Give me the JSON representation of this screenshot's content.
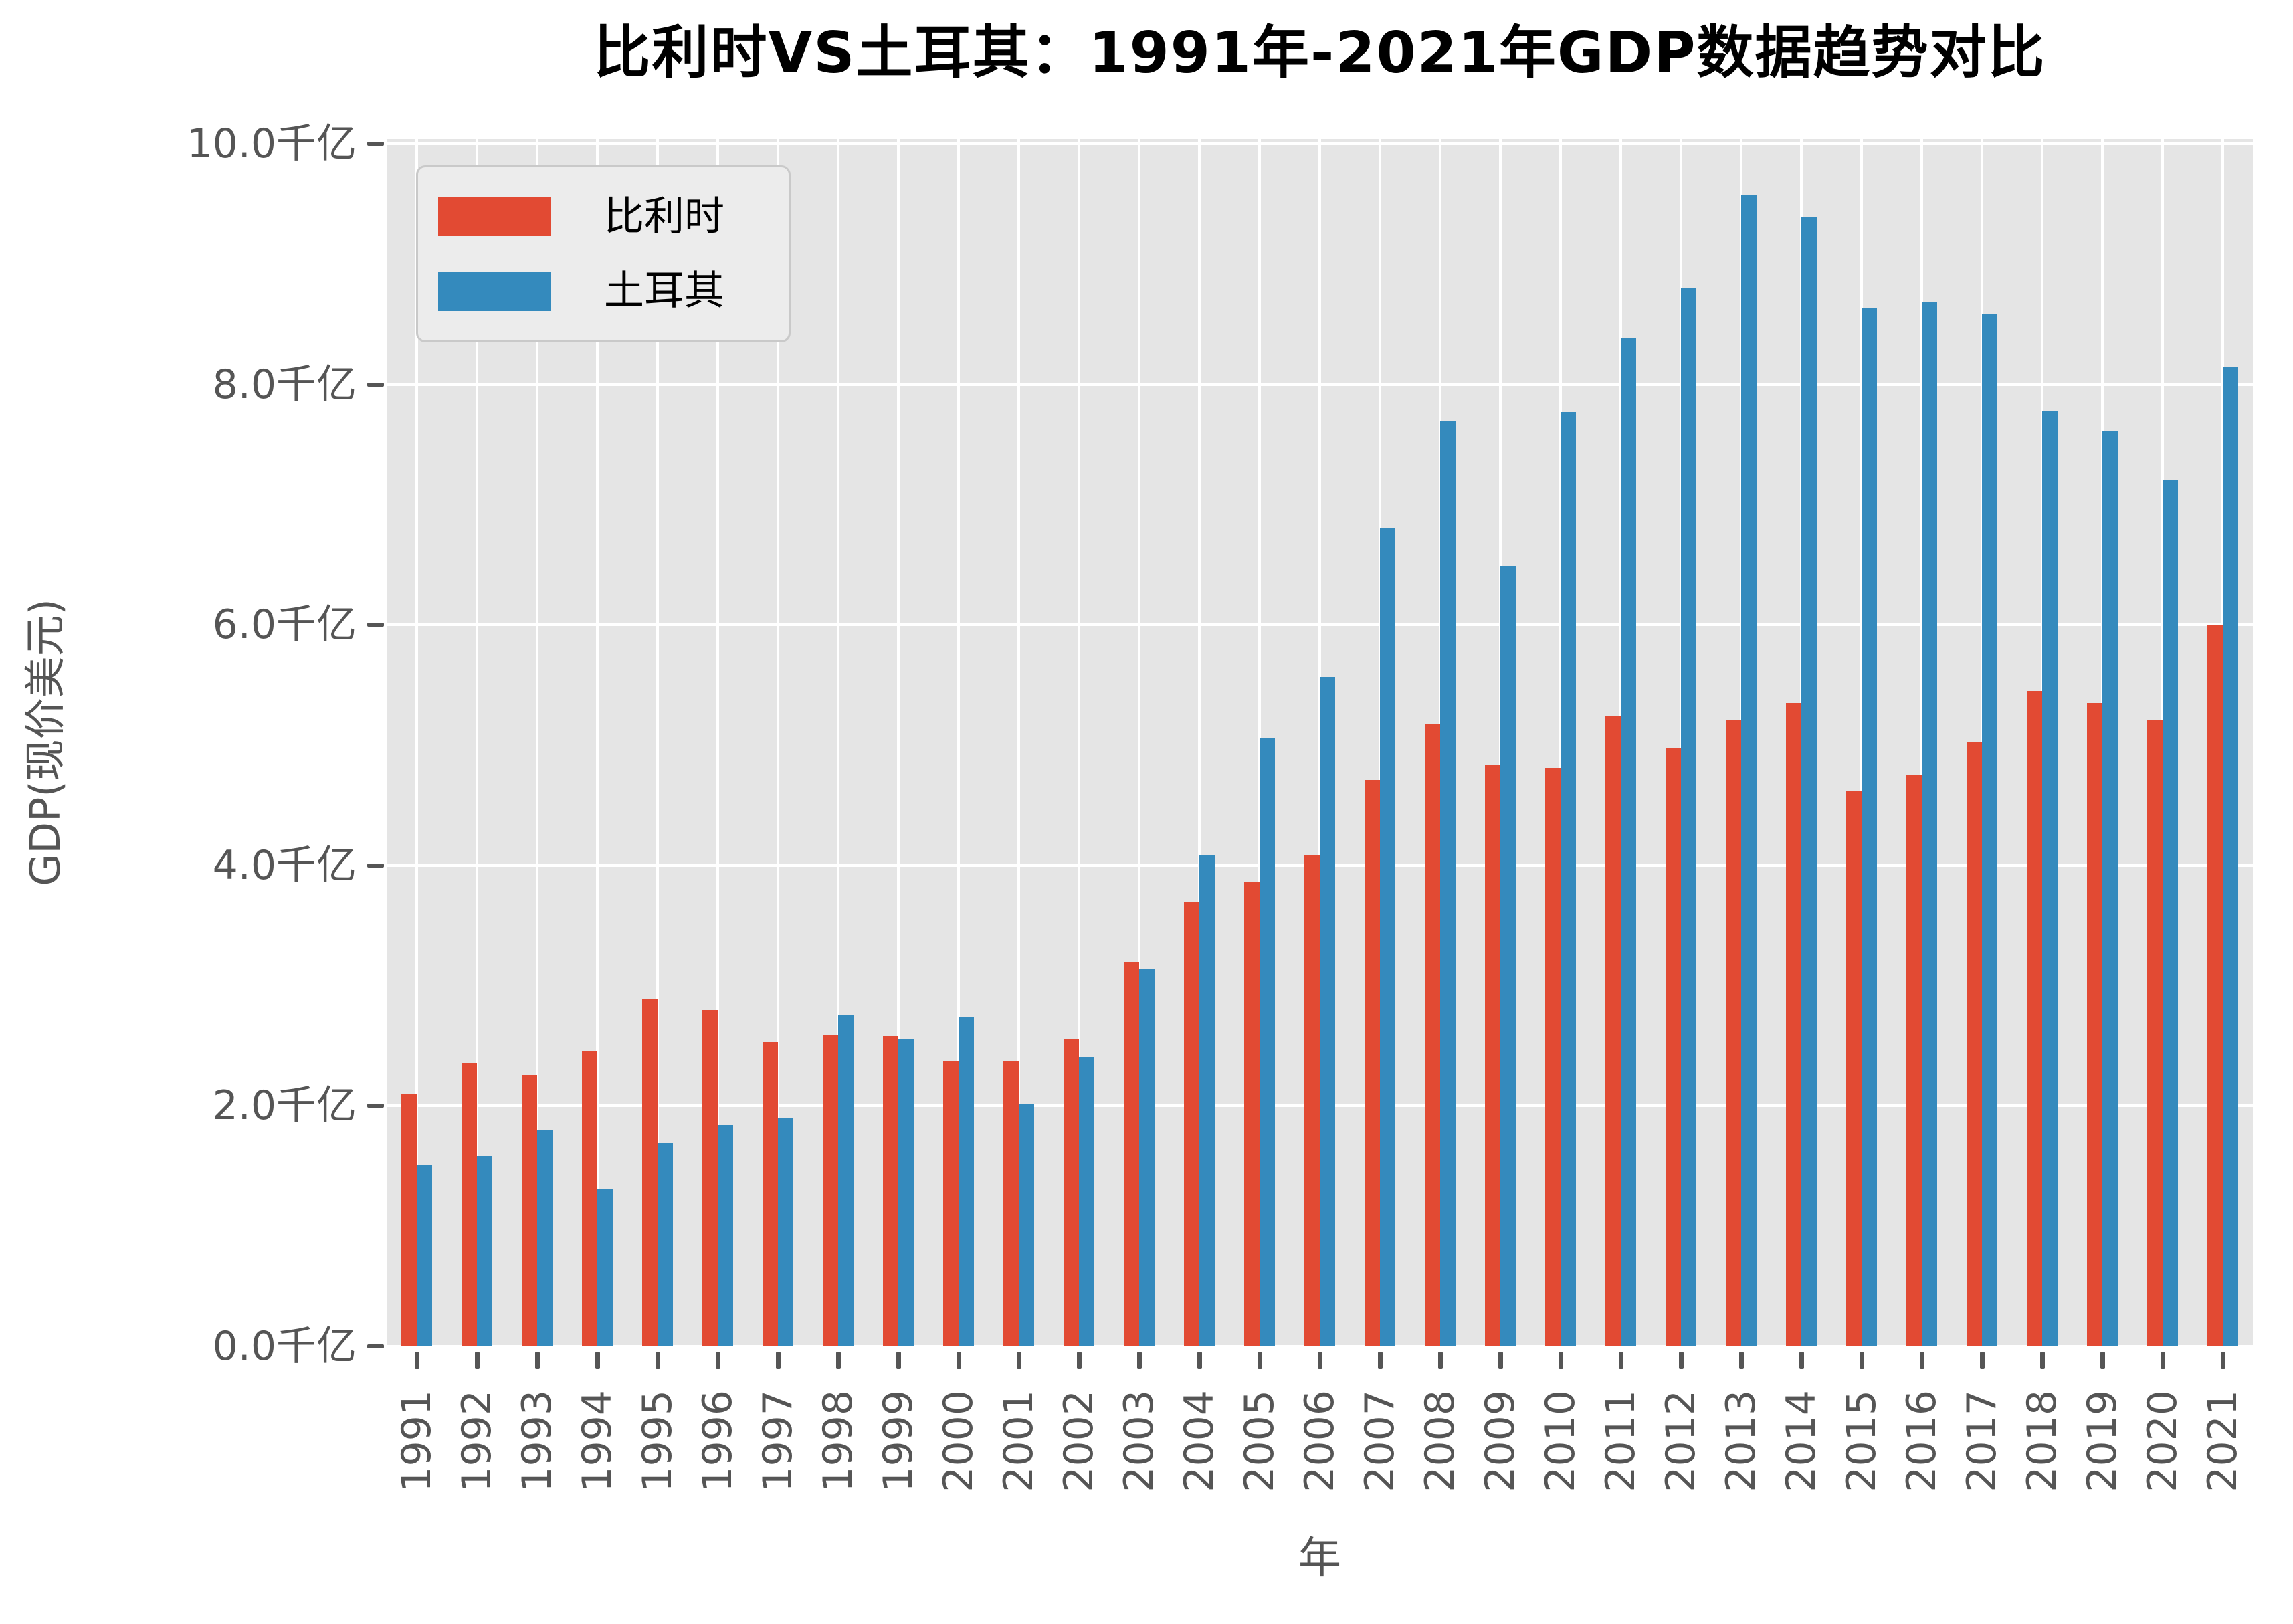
{
  "chart_data": {
    "type": "bar",
    "title": "比利时VS土耳其：1991年-2021年GDP数据趋势对比",
    "xlabel": "年",
    "ylabel": "GDP(现价美元)",
    "unit": "千亿",
    "categories": [
      "1991",
      "1992",
      "1993",
      "1994",
      "1995",
      "1996",
      "1997",
      "1998",
      "1999",
      "2000",
      "2001",
      "2002",
      "2003",
      "2004",
      "2005",
      "2006",
      "2007",
      "2008",
      "2009",
      "2010",
      "2011",
      "2012",
      "2013",
      "2014",
      "2015",
      "2016",
      "2017",
      "2018",
      "2019",
      "2020",
      "2021"
    ],
    "series": [
      {
        "name": "比利时",
        "color": "#E24A33",
        "values": [
          2.1,
          2.36,
          2.26,
          2.46,
          2.89,
          2.8,
          2.53,
          2.59,
          2.58,
          2.37,
          2.37,
          2.56,
          3.19,
          3.7,
          3.86,
          4.08,
          4.71,
          5.18,
          4.84,
          4.81,
          5.24,
          4.97,
          5.21,
          5.35,
          4.62,
          4.75,
          5.02,
          5.45,
          5.35,
          5.21,
          6.0
        ]
      },
      {
        "name": "土耳其",
        "color": "#348ABD",
        "values": [
          1.51,
          1.58,
          1.8,
          1.31,
          1.69,
          1.84,
          1.9,
          2.76,
          2.56,
          2.74,
          2.02,
          2.4,
          3.14,
          4.08,
          5.06,
          5.57,
          6.81,
          7.7,
          6.49,
          7.77,
          8.38,
          8.8,
          9.57,
          9.39,
          8.64,
          8.69,
          8.59,
          7.78,
          7.61,
          7.2,
          8.15
        ]
      }
    ],
    "ylim": [
      0,
      10.04
    ],
    "yticks": [
      {
        "value": 0,
        "label": "0.0千亿"
      },
      {
        "value": 2,
        "label": "2.0千亿"
      },
      {
        "value": 4,
        "label": "4.0千亿"
      },
      {
        "value": 6,
        "label": "6.0千亿"
      },
      {
        "value": 8,
        "label": "8.0千亿"
      },
      {
        "value": 10,
        "label": "10.0千亿"
      }
    ],
    "grid": true,
    "legend_position": "upper left",
    "colors": {
      "plot_background": "#E5E5E5",
      "gridline": "#FFFFFF",
      "tick": "#555555",
      "tick_label": "#555555",
      "axis_label": "#555555",
      "title": "#000000",
      "legend_background": "#ECECEC",
      "legend_border": "#C9C9C9",
      "legend_text": "#000000"
    }
  }
}
